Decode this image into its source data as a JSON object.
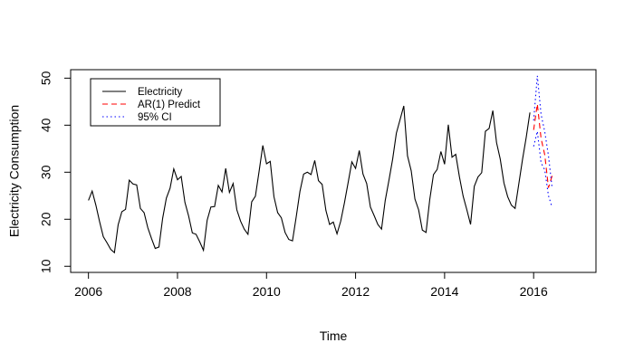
{
  "chart_data": {
    "type": "line",
    "title": "",
    "xlabel": "Time",
    "ylabel": "Electricity Consumption",
    "xlim": [
      2005.6,
      2017.4
    ],
    "ylim": [
      8.7,
      51.8
    ],
    "x_ticks": [
      2006,
      2008,
      2010,
      2012,
      2014,
      2016
    ],
    "x_tick_labels": [
      "2006",
      "2008",
      "2010",
      "2012",
      "2014",
      "2016"
    ],
    "y_ticks": [
      10,
      20,
      30,
      40,
      50
    ],
    "y_tick_labels": [
      "10",
      "20",
      "30",
      "40",
      "50"
    ],
    "grid": false,
    "legend_position": "top-left",
    "series": [
      {
        "name": "Electricity",
        "color": "#000000",
        "style": "solid",
        "x_start": 2006.0,
        "x_step": 0.0833333,
        "values": [
          24.0,
          26.0,
          23.0,
          19.5,
          16.3,
          15.0,
          13.6,
          12.9,
          18.8,
          21.6,
          22.1,
          28.3,
          27.5,
          27.3,
          22.3,
          21.4,
          18.2,
          15.9,
          13.8,
          14.1,
          20.2,
          24.5,
          26.6,
          30.7,
          28.4,
          29.1,
          23.6,
          20.7,
          17.1,
          16.8,
          15.2,
          13.4,
          19.8,
          22.6,
          22.7,
          27.2,
          25.8,
          30.8,
          25.7,
          27.6,
          22.0,
          19.6,
          17.9,
          16.8,
          23.7,
          24.9,
          30.2,
          35.7,
          31.8,
          32.3,
          24.8,
          21.4,
          20.3,
          17.2,
          15.7,
          15.4,
          20.5,
          25.9,
          29.6,
          30.0,
          29.5,
          32.5,
          28.2,
          27.4,
          21.9,
          18.9,
          19.4,
          16.9,
          19.6,
          23.5,
          27.8,
          32.2,
          30.8,
          34.6,
          29.6,
          27.6,
          22.6,
          20.8,
          18.9,
          17.9,
          24.0,
          28.3,
          32.8,
          38.3,
          41.2,
          44.1,
          33.5,
          30.3,
          24.3,
          22.0,
          17.7,
          17.2,
          24.2,
          29.5,
          30.6,
          34.4,
          31.7,
          40.1,
          33.2,
          33.8,
          29.0,
          24.9,
          22.0,
          18.9,
          27.0,
          29.0,
          29.9,
          38.7,
          39.3,
          43.1,
          36.3,
          32.8,
          27.7,
          24.8,
          23.0,
          22.3,
          27.5,
          32.7,
          37.4,
          42.7
        ]
      },
      {
        "name": "AR(1) Predict",
        "color": "#ff0000",
        "style": "dashed",
        "x": [
          2016.0,
          2016.0833,
          2016.1667,
          2016.25,
          2016.3333,
          2016.4167
        ],
        "values": [
          39.0,
          44.5,
          37.2,
          33.7,
          26.7,
          29.3
        ]
      },
      {
        "name": "95% CI",
        "color": "#0000ff",
        "style": "dotted",
        "bands": [
          {
            "x": [
              2016.0,
              2016.0833,
              2016.1667,
              2016.25,
              2016.3333,
              2016.4167
            ],
            "values": [
              41.0,
              50.5,
              42.3,
              38.6,
              33.5,
              26.5
            ]
          },
          {
            "x": [
              2016.0,
              2016.0833,
              2016.1667,
              2016.25,
              2016.3333,
              2016.4167
            ],
            "values": [
              35.5,
              38.7,
              32.0,
              30.5,
              25.0,
              22.5
            ]
          }
        ]
      }
    ]
  }
}
